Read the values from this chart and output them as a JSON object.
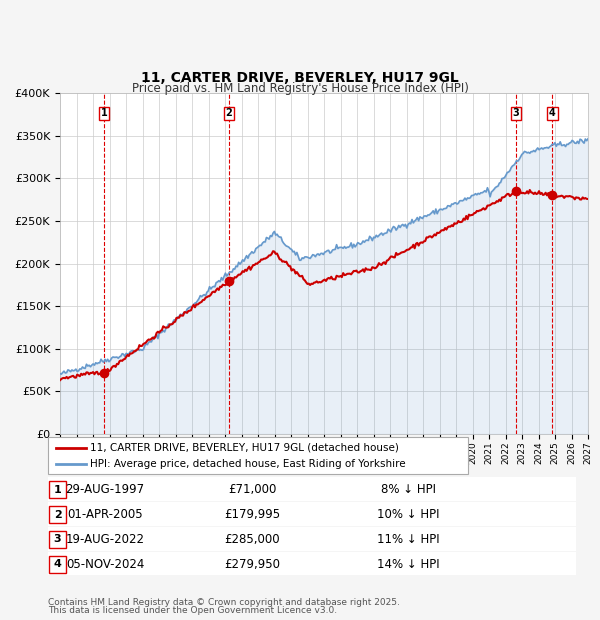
{
  "title": "11, CARTER DRIVE, BEVERLEY, HU17 9GL",
  "subtitle": "Price paid vs. HM Land Registry's House Price Index (HPI)",
  "legend_label_red": "11, CARTER DRIVE, BEVERLEY, HU17 9GL (detached house)",
  "legend_label_blue": "HPI: Average price, detached house, East Riding of Yorkshire",
  "footer_line1": "Contains HM Land Registry data © Crown copyright and database right 2025.",
  "footer_line2": "This data is licensed under the Open Government Licence v3.0.",
  "transactions": [
    {
      "num": 1,
      "date": "29-AUG-1997",
      "price": 71000,
      "pct": "8% ↓ HPI",
      "year_x": 1997.66
    },
    {
      "num": 2,
      "date": "01-APR-2005",
      "price": 179995,
      "pct": "10% ↓ HPI",
      "year_x": 2005.25
    },
    {
      "num": 3,
      "date": "19-AUG-2022",
      "price": 285000,
      "pct": "11% ↓ HPI",
      "year_x": 2022.63
    },
    {
      "num": 4,
      "date": "05-NOV-2024",
      "price": 279950,
      "pct": "14% ↓ HPI",
      "year_x": 2024.84
    }
  ],
  "xlim": [
    1995,
    2027
  ],
  "ylim": [
    0,
    400000
  ],
  "yticks": [
    0,
    50000,
    100000,
    150000,
    200000,
    250000,
    300000,
    350000,
    400000
  ],
  "ytick_labels": [
    "£0",
    "£50K",
    "£100K",
    "£150K",
    "£200K",
    "£250K",
    "£300K",
    "£350K",
    "£400K"
  ],
  "xticks": [
    1995,
    1996,
    1997,
    1998,
    1999,
    2000,
    2001,
    2002,
    2003,
    2004,
    2005,
    2006,
    2007,
    2008,
    2009,
    2010,
    2011,
    2012,
    2013,
    2014,
    2015,
    2016,
    2017,
    2018,
    2019,
    2020,
    2021,
    2022,
    2023,
    2024,
    2025,
    2026,
    2027
  ],
  "color_red": "#cc0000",
  "color_blue": "#6699cc",
  "color_grid": "#cccccc",
  "color_bg": "#f0f0f0",
  "color_plot_bg": "#ffffff",
  "vline_color": "#dd0000",
  "marker_color_red": "#cc0000",
  "marker_color_blue": "#6699cc"
}
